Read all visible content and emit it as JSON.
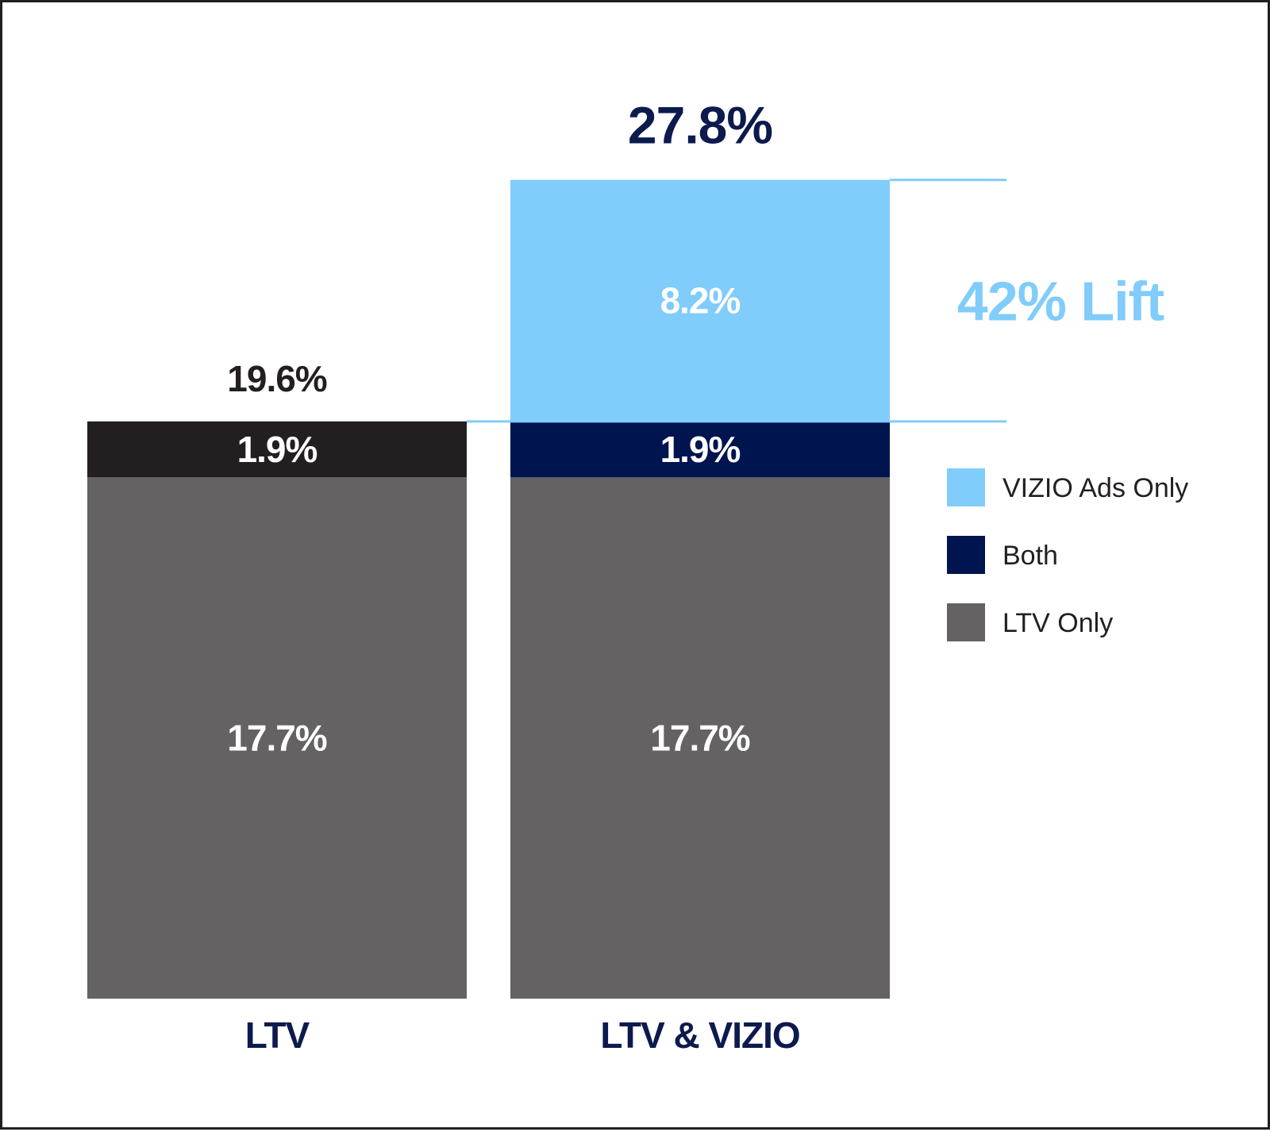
{
  "chart_data": {
    "type": "bar",
    "stacked": true,
    "categories": [
      "LTV",
      "LTV & VIZIO"
    ],
    "series": [
      {
        "name": "LTV Only",
        "values": [
          17.7,
          17.7
        ],
        "labels": [
          "17.7%",
          "17.7%"
        ],
        "color": "#646263"
      },
      {
        "name": "Both",
        "values": [
          1.9,
          1.9
        ],
        "labels": [
          "1.9%",
          "1.9%"
        ],
        "colors": [
          "#231f20",
          "#001450"
        ]
      },
      {
        "name": "VIZIO Ads Only",
        "values": [
          0,
          8.2
        ],
        "labels": [
          "",
          "8.2%"
        ],
        "color": "#80ccfb"
      }
    ],
    "totals": [
      19.6,
      27.8
    ],
    "total_labels": [
      "19.6%",
      "27.8%"
    ],
    "total_label_colors": [
      "#231f20",
      "#0c1a4d"
    ],
    "category_label_color": "#0c1a4d",
    "annotation": {
      "text": "42% Lift",
      "color": "#80ccfb"
    },
    "legend": {
      "position": "right",
      "entries": [
        {
          "label": "VIZIO Ads Only",
          "color": "#80ccfb"
        },
        {
          "label": "Both",
          "color": "#001450"
        },
        {
          "label": "LTV Only",
          "color": "#646263"
        }
      ]
    },
    "ylim": [
      0,
      30
    ],
    "grid": false,
    "title": "",
    "xlabel": "",
    "ylabel": ""
  }
}
